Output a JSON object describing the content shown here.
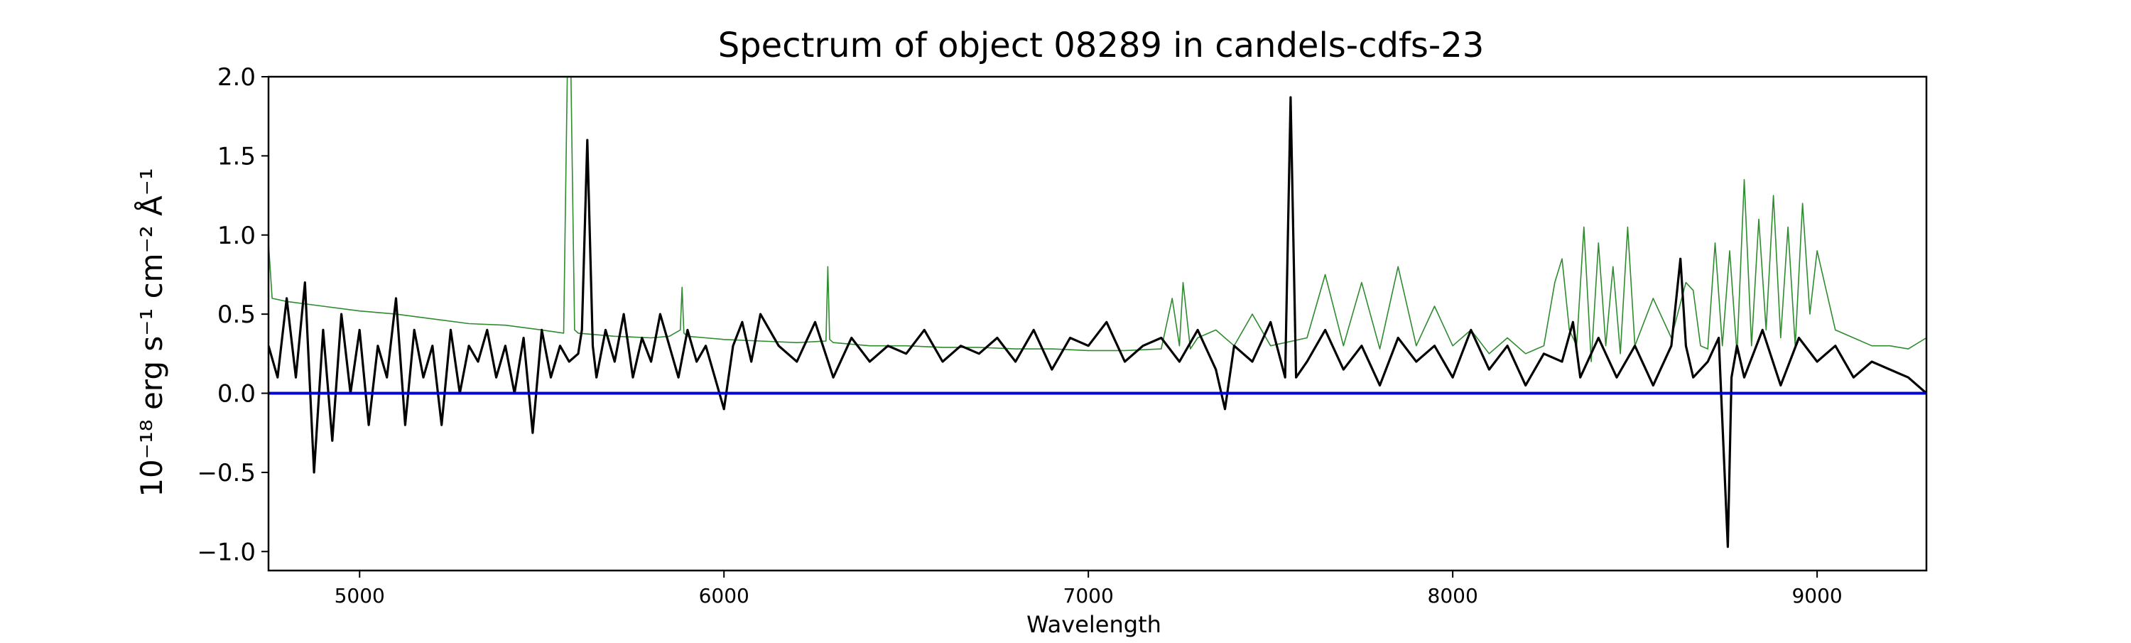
{
  "chart_data": {
    "type": "line",
    "title": "Spectrum of object 08289 in candels-cdfs-23",
    "xlabel": "Wavelength",
    "ylabel": "10⁻¹⁸ erg s⁻¹ cm⁻² Å⁻¹",
    "xlim": [
      4750,
      9300
    ],
    "ylim": [
      -1.12,
      2.0
    ],
    "x_ticks": [
      5000,
      6000,
      7000,
      8000,
      9000
    ],
    "x_tick_labels": [
      "5000",
      "6000",
      "7000",
      "8000",
      "9000"
    ],
    "y_ticks": [
      -1.0,
      -0.5,
      0.0,
      0.5,
      1.0,
      1.5,
      2.0
    ],
    "y_tick_labels": [
      "−1.0",
      "−0.5",
      "0.0",
      "0.5",
      "1.0",
      "1.5",
      "2.0"
    ],
    "grid": false,
    "legend": "none",
    "colors": {
      "flux": "#000000",
      "error": "#2e8b2e",
      "zero": "#0000cc"
    },
    "series": [
      {
        "key": "flux",
        "x": [
          4750,
          4775,
          4800,
          4825,
          4850,
          4875,
          4900,
          4925,
          4950,
          4975,
          5000,
          5025,
          5050,
          5075,
          5100,
          5125,
          5150,
          5175,
          5200,
          5225,
          5250,
          5275,
          5300,
          5325,
          5350,
          5375,
          5400,
          5425,
          5450,
          5475,
          5500,
          5525,
          5550,
          5575,
          5600,
          5610,
          5625,
          5640,
          5650,
          5675,
          5700,
          5725,
          5750,
          5775,
          5800,
          5825,
          5850,
          5875,
          5900,
          5925,
          5950,
          5975,
          6000,
          6025,
          6050,
          6075,
          6100,
          6150,
          6200,
          6250,
          6300,
          6350,
          6400,
          6450,
          6500,
          6550,
          6600,
          6650,
          6700,
          6750,
          6800,
          6850,
          6900,
          6950,
          7000,
          7050,
          7100,
          7150,
          7200,
          7250,
          7300,
          7350,
          7375,
          7400,
          7450,
          7500,
          7540,
          7555,
          7570,
          7600,
          7650,
          7700,
          7750,
          7800,
          7850,
          7900,
          7950,
          8000,
          8050,
          8100,
          8150,
          8200,
          8250,
          8300,
          8330,
          8350,
          8400,
          8450,
          8500,
          8550,
          8600,
          8625,
          8640,
          8660,
          8700,
          8730,
          8755,
          8765,
          8780,
          8800,
          8850,
          8900,
          8950,
          9000,
          9050,
          9100,
          9150,
          9200,
          9250,
          9300
        ],
        "y": [
          0.3,
          0.1,
          0.6,
          0.1,
          0.7,
          -0.5,
          0.4,
          -0.3,
          0.5,
          0.0,
          0.4,
          -0.2,
          0.3,
          0.1,
          0.6,
          -0.2,
          0.4,
          0.1,
          0.3,
          -0.2,
          0.4,
          0.0,
          0.3,
          0.2,
          0.4,
          0.1,
          0.3,
          0.0,
          0.35,
          -0.25,
          0.4,
          0.1,
          0.3,
          0.2,
          0.25,
          0.4,
          1.6,
          0.3,
          0.1,
          0.4,
          0.2,
          0.5,
          0.1,
          0.35,
          0.2,
          0.5,
          0.3,
          0.1,
          0.4,
          0.2,
          0.3,
          0.1,
          -0.1,
          0.3,
          0.45,
          0.2,
          0.5,
          0.3,
          0.2,
          0.45,
          0.1,
          0.35,
          0.2,
          0.3,
          0.25,
          0.4,
          0.2,
          0.3,
          0.25,
          0.35,
          0.2,
          0.4,
          0.15,
          0.35,
          0.3,
          0.45,
          0.2,
          0.3,
          0.35,
          0.2,
          0.4,
          0.15,
          -0.1,
          0.3,
          0.2,
          0.45,
          0.1,
          1.87,
          0.1,
          0.2,
          0.4,
          0.15,
          0.3,
          0.05,
          0.35,
          0.2,
          0.3,
          0.1,
          0.4,
          0.15,
          0.3,
          0.05,
          0.25,
          0.2,
          0.45,
          0.1,
          0.35,
          0.1,
          0.3,
          0.05,
          0.3,
          0.85,
          0.3,
          0.1,
          0.2,
          0.35,
          -0.97,
          0.1,
          0.3,
          0.1,
          0.4,
          0.05,
          0.35,
          0.2,
          0.3,
          0.1,
          0.2,
          0.15,
          0.1,
          0.0
        ]
      },
      {
        "key": "error",
        "x": [
          4750,
          4760,
          4800,
          4900,
          5000,
          5100,
          5200,
          5300,
          5400,
          5500,
          5560,
          5570,
          5575,
          5580,
          5590,
          5600,
          5700,
          5800,
          5850,
          5880,
          5885,
          5890,
          5900,
          5950,
          6000,
          6100,
          6200,
          6280,
          6285,
          6290,
          6300,
          6400,
          6500,
          6600,
          6700,
          6800,
          6900,
          7000,
          7100,
          7200,
          7230,
          7250,
          7260,
          7280,
          7300,
          7350,
          7400,
          7450,
          7500,
          7600,
          7650,
          7700,
          7750,
          7800,
          7850,
          7900,
          7950,
          8000,
          8050,
          8100,
          8150,
          8200,
          8250,
          8280,
          8300,
          8320,
          8340,
          8360,
          8380,
          8400,
          8420,
          8440,
          8460,
          8480,
          8500,
          8550,
          8600,
          8640,
          8660,
          8680,
          8700,
          8720,
          8740,
          8760,
          8780,
          8800,
          8820,
          8840,
          8860,
          8880,
          8900,
          8920,
          8940,
          8960,
          8980,
          9000,
          9050,
          9100,
          9150,
          9200,
          9250,
          9300
        ],
        "y": [
          0.95,
          0.6,
          0.58,
          0.55,
          0.52,
          0.5,
          0.47,
          0.44,
          0.43,
          0.4,
          0.38,
          2.0,
          2.0,
          2.0,
          0.4,
          0.38,
          0.36,
          0.35,
          0.36,
          0.4,
          0.67,
          0.38,
          0.36,
          0.35,
          0.34,
          0.33,
          0.32,
          0.33,
          0.8,
          0.34,
          0.32,
          0.3,
          0.3,
          0.29,
          0.29,
          0.28,
          0.28,
          0.27,
          0.27,
          0.28,
          0.6,
          0.3,
          0.7,
          0.28,
          0.35,
          0.4,
          0.3,
          0.5,
          0.3,
          0.35,
          0.75,
          0.3,
          0.7,
          0.28,
          0.8,
          0.3,
          0.55,
          0.3,
          0.4,
          0.25,
          0.35,
          0.25,
          0.3,
          0.7,
          0.85,
          0.4,
          0.3,
          1.05,
          0.2,
          0.95,
          0.3,
          0.8,
          0.25,
          1.05,
          0.3,
          0.6,
          0.35,
          0.7,
          0.65,
          0.3,
          0.28,
          0.95,
          0.3,
          0.9,
          0.25,
          1.35,
          0.3,
          1.1,
          0.4,
          1.25,
          0.35,
          1.05,
          0.3,
          1.2,
          0.5,
          0.9,
          0.4,
          0.35,
          0.3,
          0.3,
          0.28,
          0.35
        ]
      },
      {
        "key": "zero",
        "x": [
          4750,
          9300
        ],
        "y": [
          0.0,
          0.0
        ]
      }
    ]
  }
}
